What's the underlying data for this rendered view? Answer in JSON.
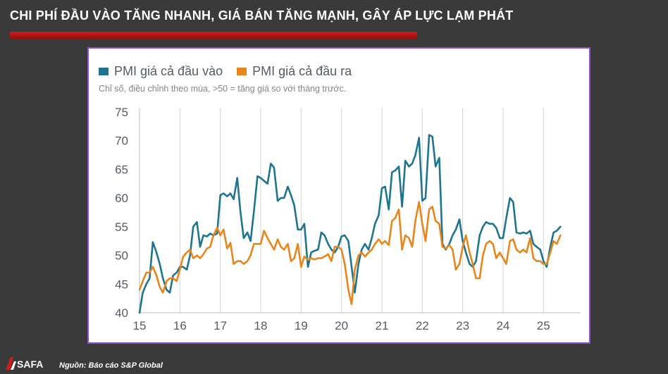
{
  "headline": "CHI PHÍ ĐẦU VÀO TĂNG NHANH, GIÁ BÁN TĂNG MẠNH, GÂY ÁP LỰC LẠM PHÁT",
  "source": "Nguồn: Báo cáo S&P Global",
  "logo_text": "SAFA",
  "colors": {
    "accent_red": "#c81515",
    "frame": "#8d4fd6",
    "input_series": "#1d7590",
    "output_series": "#e8861c"
  },
  "chart_data": {
    "type": "line",
    "subtitle": "Chỉ số, điều chỉnh theo mùa, >50 = tăng giá so với tháng trước.",
    "x_tick_labels": [
      "15",
      "16",
      "17",
      "18",
      "19",
      "20",
      "21",
      "22",
      "23",
      "24",
      "25"
    ],
    "x_range": [
      2015.0,
      2025.92
    ],
    "ylim": [
      40,
      75
    ],
    "y_ticks": [
      40,
      45,
      50,
      55,
      60,
      65,
      70,
      75
    ],
    "grid": {
      "horizontal": false,
      "vertical": true
    },
    "legend_position": "top-left",
    "series": [
      {
        "name": "PMI giá cả đầu vào",
        "color": "#1d7590",
        "points": [
          [
            2015.0,
            40.0
          ],
          [
            2015.08,
            43.5
          ],
          [
            2015.17,
            45.0
          ],
          [
            2015.25,
            46.0
          ],
          [
            2015.33,
            52.3
          ],
          [
            2015.42,
            50.5
          ],
          [
            2015.5,
            48.5
          ],
          [
            2015.58,
            46.0
          ],
          [
            2015.67,
            44.0
          ],
          [
            2015.75,
            43.5
          ],
          [
            2015.83,
            46.5
          ],
          [
            2015.92,
            47.0
          ],
          [
            2016.0,
            48.0
          ],
          [
            2016.08,
            48.0
          ],
          [
            2016.17,
            47.5
          ],
          [
            2016.25,
            50.0
          ],
          [
            2016.33,
            55.0
          ],
          [
            2016.42,
            55.8
          ],
          [
            2016.5,
            51.5
          ],
          [
            2016.58,
            53.5
          ],
          [
            2016.67,
            53.3
          ],
          [
            2016.75,
            53.8
          ],
          [
            2016.83,
            53.5
          ],
          [
            2016.92,
            53.8
          ],
          [
            2017.0,
            60.5
          ],
          [
            2017.08,
            60.8
          ],
          [
            2017.17,
            60.3
          ],
          [
            2017.25,
            60.8
          ],
          [
            2017.33,
            59.8
          ],
          [
            2017.42,
            63.5
          ],
          [
            2017.5,
            57.5
          ],
          [
            2017.58,
            53.0
          ],
          [
            2017.67,
            54.0
          ],
          [
            2017.75,
            52.5
          ],
          [
            2017.83,
            57.5
          ],
          [
            2017.92,
            63.8
          ],
          [
            2018.0,
            63.5
          ],
          [
            2018.08,
            63.0
          ],
          [
            2018.17,
            62.5
          ],
          [
            2018.25,
            66.0
          ],
          [
            2018.33,
            65.3
          ],
          [
            2018.42,
            59.5
          ],
          [
            2018.5,
            60.0
          ],
          [
            2018.58,
            60.0
          ],
          [
            2018.67,
            62.0
          ],
          [
            2018.75,
            60.5
          ],
          [
            2018.83,
            58.7
          ],
          [
            2018.92,
            54.5
          ],
          [
            2019.0,
            54.5
          ],
          [
            2019.08,
            55.5
          ],
          [
            2019.17,
            48.0
          ],
          [
            2019.25,
            50.5
          ],
          [
            2019.33,
            50.8
          ],
          [
            2019.42,
            51.0
          ],
          [
            2019.5,
            54.0
          ],
          [
            2019.58,
            53.5
          ],
          [
            2019.67,
            52.0
          ],
          [
            2019.75,
            51.0
          ],
          [
            2019.83,
            50.5
          ],
          [
            2019.92,
            51.5
          ],
          [
            2020.0,
            53.3
          ],
          [
            2020.08,
            53.5
          ],
          [
            2020.17,
            52.5
          ],
          [
            2020.25,
            48.0
          ],
          [
            2020.33,
            43.5
          ],
          [
            2020.42,
            48.5
          ],
          [
            2020.5,
            51.0
          ],
          [
            2020.58,
            52.0
          ],
          [
            2020.67,
            51.0
          ],
          [
            2020.75,
            53.0
          ],
          [
            2020.83,
            55.5
          ],
          [
            2020.92,
            57.0
          ],
          [
            2021.0,
            61.7
          ],
          [
            2021.08,
            62.0
          ],
          [
            2021.17,
            58.0
          ],
          [
            2021.25,
            64.5
          ],
          [
            2021.33,
            64.8
          ],
          [
            2021.42,
            65.5
          ],
          [
            2021.5,
            58.5
          ],
          [
            2021.58,
            66.5
          ],
          [
            2021.67,
            65.5
          ],
          [
            2021.75,
            66.0
          ],
          [
            2021.83,
            67.5
          ],
          [
            2021.92,
            70.5
          ],
          [
            2022.0,
            59.5
          ],
          [
            2022.08,
            60.0
          ],
          [
            2022.17,
            71.0
          ],
          [
            2022.25,
            70.7
          ],
          [
            2022.33,
            65.5
          ],
          [
            2022.42,
            67.0
          ],
          [
            2022.5,
            52.0
          ],
          [
            2022.58,
            51.0
          ],
          [
            2022.67,
            52.0
          ],
          [
            2022.75,
            53.5
          ],
          [
            2022.83,
            54.5
          ],
          [
            2022.92,
            56.3
          ],
          [
            2023.0,
            52.5
          ],
          [
            2023.08,
            50.5
          ],
          [
            2023.17,
            48.5
          ],
          [
            2023.25,
            48.0
          ],
          [
            2023.33,
            49.0
          ],
          [
            2023.42,
            53.5
          ],
          [
            2023.5,
            55.0
          ],
          [
            2023.58,
            55.8
          ],
          [
            2023.67,
            55.5
          ],
          [
            2023.75,
            55.5
          ],
          [
            2023.83,
            54.8
          ],
          [
            2023.92,
            53.0
          ],
          [
            2024.0,
            53.0
          ],
          [
            2024.08,
            56.5
          ],
          [
            2024.17,
            60.0
          ],
          [
            2024.25,
            59.3
          ],
          [
            2024.33,
            54.0
          ],
          [
            2024.42,
            53.8
          ],
          [
            2024.5,
            54.0
          ],
          [
            2024.58,
            53.8
          ],
          [
            2024.67,
            54.3
          ],
          [
            2024.75,
            52.0
          ],
          [
            2024.83,
            51.5
          ],
          [
            2024.92,
            51.0
          ],
          [
            2025.0,
            49.0
          ],
          [
            2025.08,
            48.0
          ],
          [
            2025.17,
            51.5
          ],
          [
            2025.25,
            54.0
          ],
          [
            2025.33,
            54.3
          ],
          [
            2025.42,
            55.0
          ]
        ]
      },
      {
        "name": "PMI giá cả đầu ra",
        "color": "#e8861c",
        "points": [
          [
            2015.0,
            44.0
          ],
          [
            2015.08,
            45.5
          ],
          [
            2015.17,
            47.0
          ],
          [
            2015.25,
            47.0
          ],
          [
            2015.33,
            48.0
          ],
          [
            2015.42,
            46.5
          ],
          [
            2015.5,
            44.5
          ],
          [
            2015.58,
            43.5
          ],
          [
            2015.67,
            45.5
          ],
          [
            2015.75,
            46.0
          ],
          [
            2015.83,
            46.0
          ],
          [
            2015.92,
            45.5
          ],
          [
            2016.0,
            47.5
          ],
          [
            2016.08,
            49.8
          ],
          [
            2016.17,
            50.5
          ],
          [
            2016.25,
            51.0
          ],
          [
            2016.33,
            49.5
          ],
          [
            2016.42,
            50.0
          ],
          [
            2016.5,
            49.5
          ],
          [
            2016.58,
            50.2
          ],
          [
            2016.67,
            51.2
          ],
          [
            2016.75,
            51.5
          ],
          [
            2016.83,
            53.5
          ],
          [
            2016.92,
            54.8
          ],
          [
            2017.0,
            53.5
          ],
          [
            2017.08,
            54.5
          ],
          [
            2017.17,
            51.2
          ],
          [
            2017.25,
            52.2
          ],
          [
            2017.33,
            48.5
          ],
          [
            2017.42,
            49.0
          ],
          [
            2017.5,
            49.0
          ],
          [
            2017.58,
            48.5
          ],
          [
            2017.67,
            49.0
          ],
          [
            2017.75,
            50.0
          ],
          [
            2017.83,
            52.0
          ],
          [
            2017.92,
            52.0
          ],
          [
            2018.0,
            52.0
          ],
          [
            2018.08,
            54.3
          ],
          [
            2018.17,
            53.0
          ],
          [
            2018.25,
            52.0
          ],
          [
            2018.33,
            51.0
          ],
          [
            2018.42,
            52.8
          ],
          [
            2018.5,
            51.5
          ],
          [
            2018.58,
            51.0
          ],
          [
            2018.67,
            52.0
          ],
          [
            2018.75,
            49.0
          ],
          [
            2018.83,
            49.5
          ],
          [
            2018.92,
            52.0
          ],
          [
            2019.0,
            48.0
          ],
          [
            2019.08,
            49.8
          ],
          [
            2019.17,
            49.2
          ],
          [
            2019.25,
            49.5
          ],
          [
            2019.33,
            49.3
          ],
          [
            2019.42,
            49.5
          ],
          [
            2019.5,
            49.5
          ],
          [
            2019.58,
            49.8
          ],
          [
            2019.67,
            50.2
          ],
          [
            2019.75,
            49.0
          ],
          [
            2019.83,
            51.5
          ],
          [
            2019.92,
            51.5
          ],
          [
            2020.0,
            51.0
          ],
          [
            2020.08,
            48.5
          ],
          [
            2020.17,
            44.0
          ],
          [
            2020.25,
            41.5
          ],
          [
            2020.33,
            47.5
          ],
          [
            2020.42,
            50.0
          ],
          [
            2020.5,
            50.5
          ],
          [
            2020.58,
            49.8
          ],
          [
            2020.67,
            50.5
          ],
          [
            2020.75,
            51.0
          ],
          [
            2020.83,
            52.0
          ],
          [
            2020.92,
            52.8
          ],
          [
            2021.0,
            52.0
          ],
          [
            2021.08,
            52.5
          ],
          [
            2021.17,
            51.8
          ],
          [
            2021.25,
            56.0
          ],
          [
            2021.33,
            56.5
          ],
          [
            2021.42,
            58.0
          ],
          [
            2021.5,
            51.0
          ],
          [
            2021.58,
            53.5
          ],
          [
            2021.67,
            53.0
          ],
          [
            2021.75,
            51.5
          ],
          [
            2021.83,
            56.0
          ],
          [
            2021.92,
            59.3
          ],
          [
            2022.0,
            55.5
          ],
          [
            2022.08,
            52.5
          ],
          [
            2022.17,
            58.0
          ],
          [
            2022.25,
            58.5
          ],
          [
            2022.33,
            56.0
          ],
          [
            2022.42,
            55.5
          ],
          [
            2022.5,
            51.5
          ],
          [
            2022.58,
            51.2
          ],
          [
            2022.67,
            51.8
          ],
          [
            2022.75,
            51.0
          ],
          [
            2022.83,
            47.5
          ],
          [
            2022.92,
            48.5
          ],
          [
            2023.0,
            51.5
          ],
          [
            2023.08,
            53.5
          ],
          [
            2023.17,
            50.5
          ],
          [
            2023.25,
            48.5
          ],
          [
            2023.33,
            46.0
          ],
          [
            2023.42,
            46.0
          ],
          [
            2023.5,
            50.0
          ],
          [
            2023.58,
            52.0
          ],
          [
            2023.67,
            52.5
          ],
          [
            2023.75,
            52.0
          ],
          [
            2023.83,
            49.5
          ],
          [
            2023.92,
            50.5
          ],
          [
            2024.0,
            49.5
          ],
          [
            2024.08,
            48.5
          ],
          [
            2024.17,
            52.5
          ],
          [
            2024.25,
            52.8
          ],
          [
            2024.33,
            51.0
          ],
          [
            2024.42,
            50.5
          ],
          [
            2024.5,
            51.0
          ],
          [
            2024.58,
            50.5
          ],
          [
            2024.67,
            53.0
          ],
          [
            2024.75,
            49.5
          ],
          [
            2024.83,
            49.0
          ],
          [
            2024.92,
            49.0
          ],
          [
            2025.0,
            48.5
          ],
          [
            2025.08,
            48.5
          ],
          [
            2025.17,
            50.5
          ],
          [
            2025.25,
            52.5
          ],
          [
            2025.33,
            52.0
          ],
          [
            2025.42,
            53.5
          ]
        ]
      }
    ]
  }
}
